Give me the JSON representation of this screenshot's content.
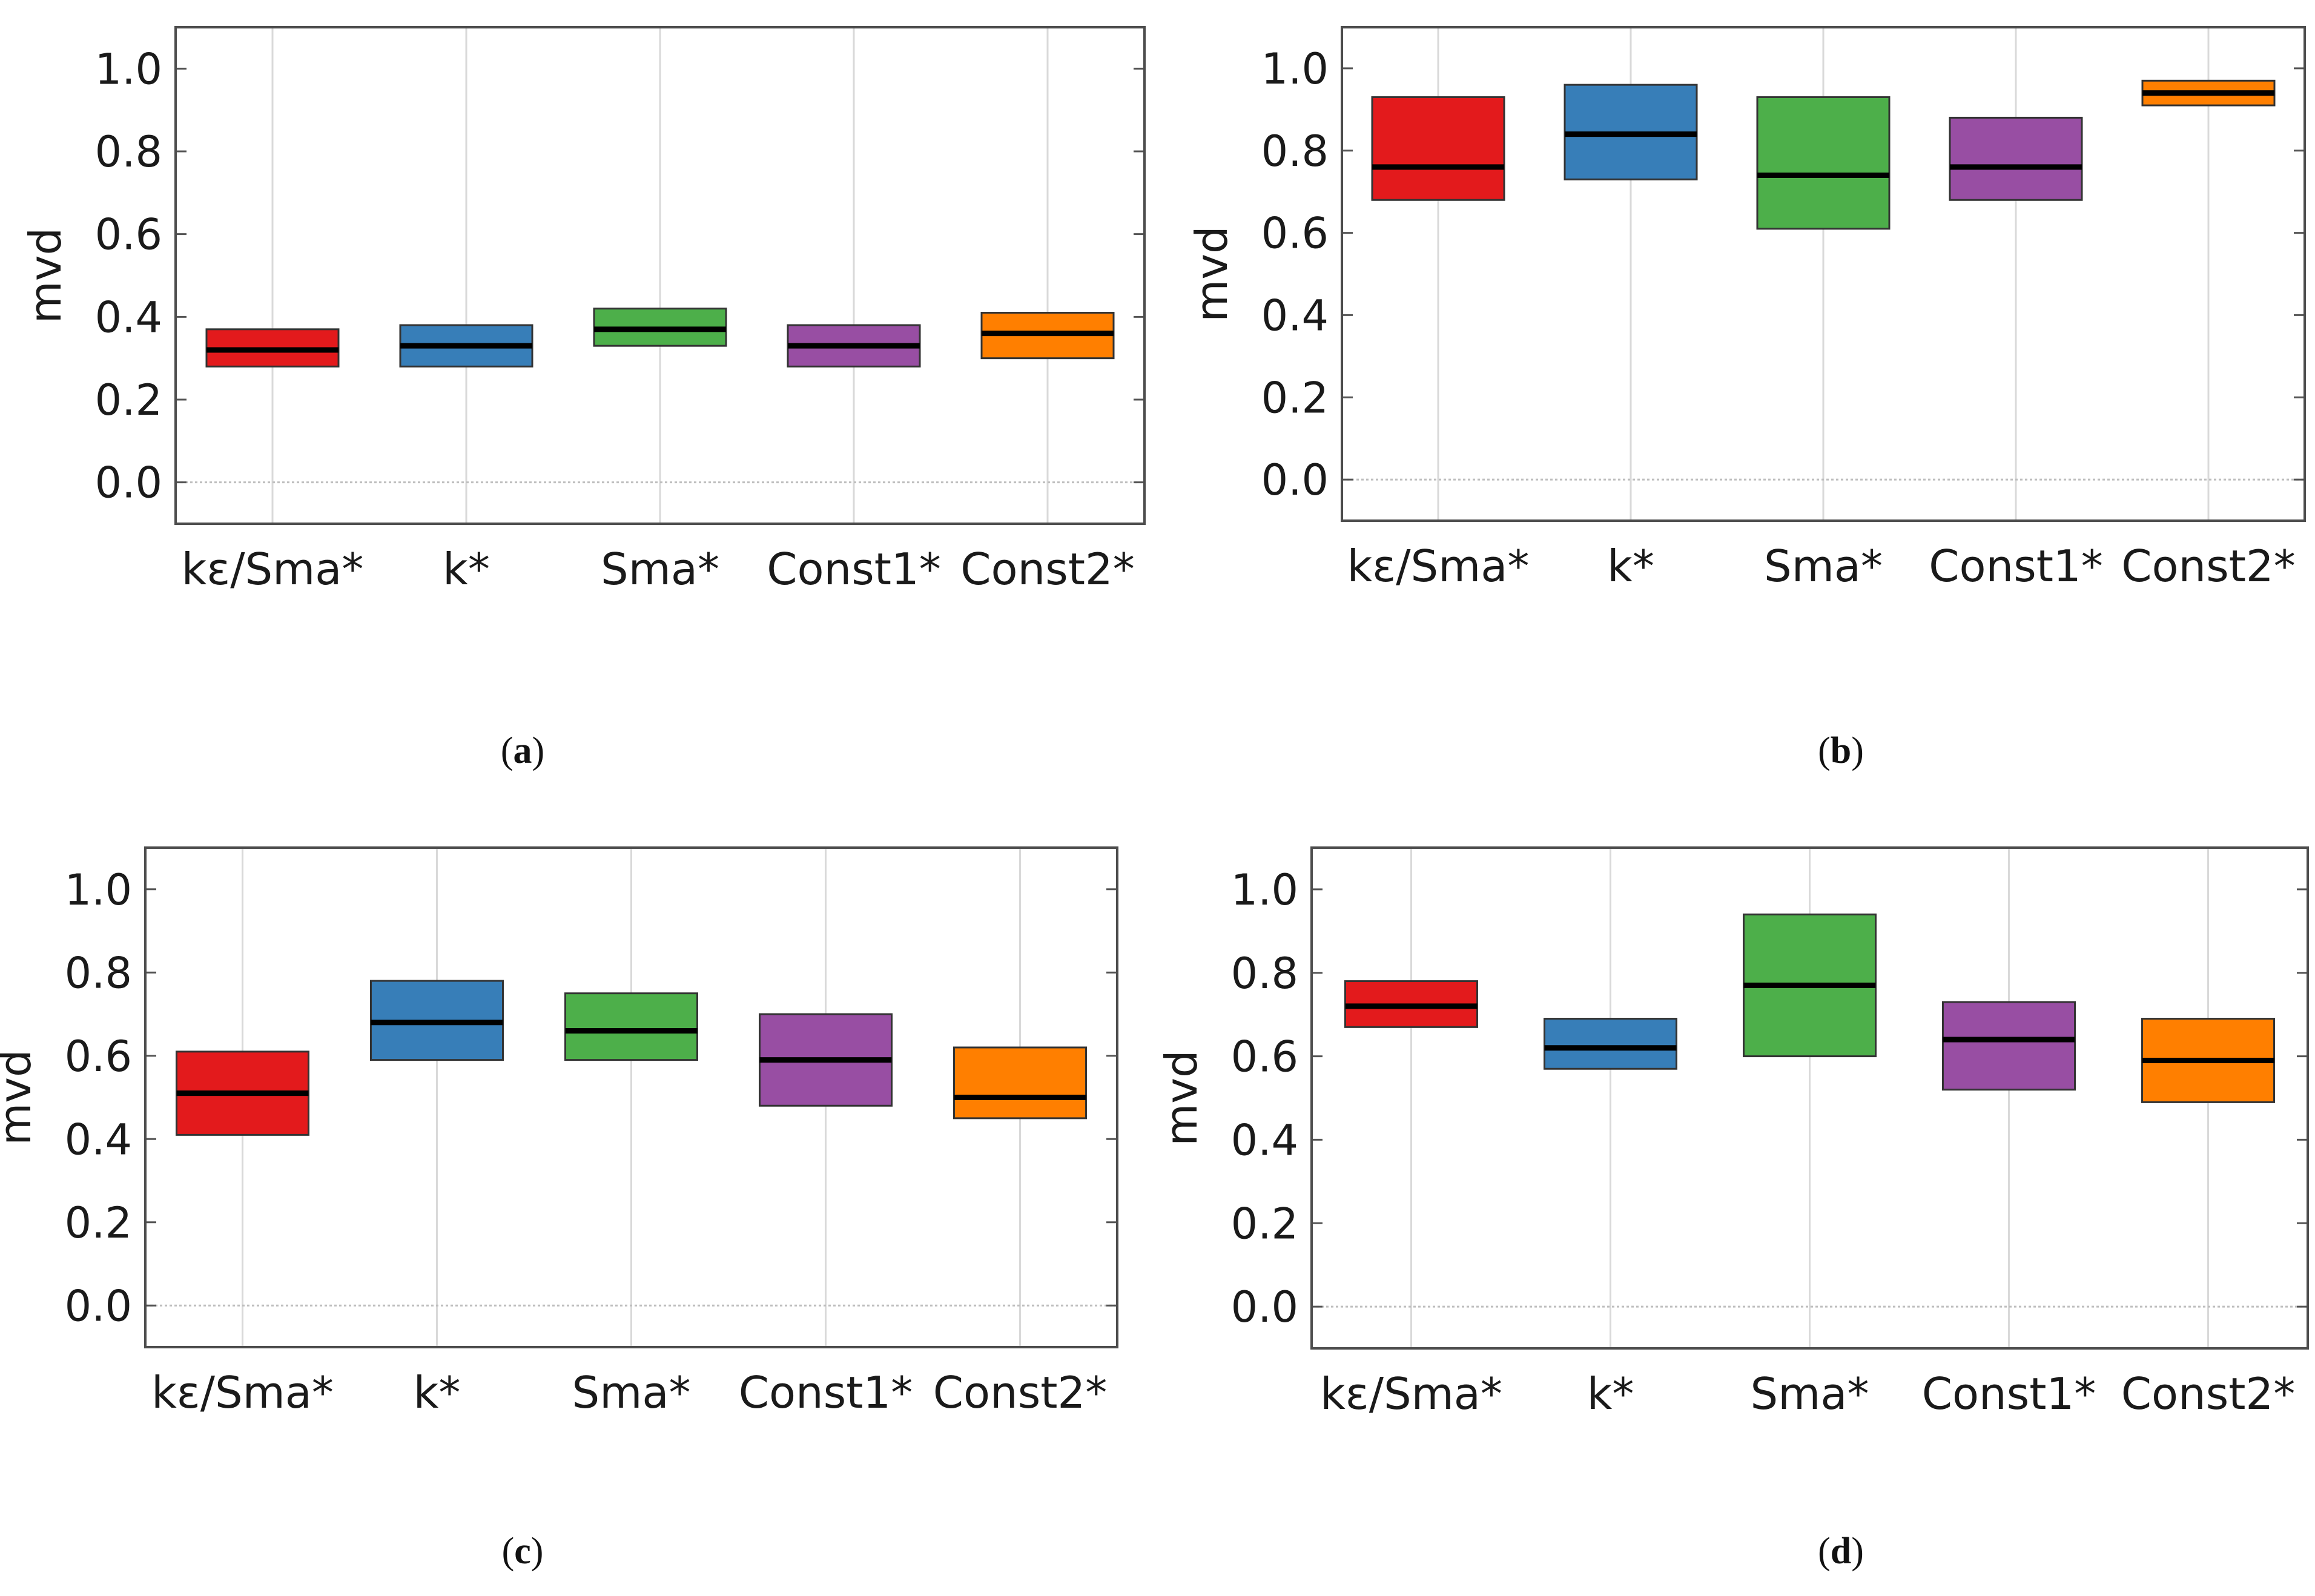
{
  "figure": {
    "caption_prefix": "(",
    "caption_suffix": ")"
  },
  "chart_data": [
    {
      "panel": "a",
      "type": "box",
      "ylabel": "mvd",
      "ylim": [
        -0.1,
        1.1
      ],
      "yticks": [
        0.0,
        0.2,
        0.4,
        0.6,
        0.8,
        1.0
      ],
      "ytick_labels": [
        "0.0",
        "0.2",
        "0.4",
        "0.6",
        "0.8",
        "1.0"
      ],
      "grid": true,
      "categories": [
        "kε/Sma*",
        "k*",
        "Sma*",
        "Const1*",
        "Const2*"
      ],
      "colors": [
        "#e31a1c",
        "#377eb8",
        "#4daf4a",
        "#984ea3",
        "#ff7f00"
      ],
      "boxes": [
        {
          "q1": 0.28,
          "median": 0.32,
          "q3": 0.37
        },
        {
          "q1": 0.28,
          "median": 0.33,
          "q3": 0.38
        },
        {
          "q1": 0.33,
          "median": 0.37,
          "q3": 0.42
        },
        {
          "q1": 0.28,
          "median": 0.33,
          "q3": 0.38
        },
        {
          "q1": 0.3,
          "median": 0.36,
          "q3": 0.41
        }
      ]
    },
    {
      "panel": "b",
      "type": "box",
      "ylabel": "mvd",
      "ylim": [
        -0.1,
        1.1
      ],
      "yticks": [
        0.0,
        0.2,
        0.4,
        0.6,
        0.8,
        1.0
      ],
      "ytick_labels": [
        "0.0",
        "0.2",
        "0.4",
        "0.6",
        "0.8",
        "1.0"
      ],
      "grid": true,
      "categories": [
        "kε/Sma*",
        "k*",
        "Sma*",
        "Const1*",
        "Const2*"
      ],
      "colors": [
        "#e31a1c",
        "#377eb8",
        "#4daf4a",
        "#984ea3",
        "#ff7f00"
      ],
      "boxes": [
        {
          "q1": 0.68,
          "median": 0.76,
          "q3": 0.93
        },
        {
          "q1": 0.73,
          "median": 0.84,
          "q3": 0.96
        },
        {
          "q1": 0.61,
          "median": 0.74,
          "q3": 0.93
        },
        {
          "q1": 0.68,
          "median": 0.76,
          "q3": 0.88
        },
        {
          "q1": 0.91,
          "median": 0.94,
          "q3": 0.97
        }
      ]
    },
    {
      "panel": "c",
      "type": "box",
      "ylabel": "mvd",
      "ylim": [
        -0.1,
        1.1
      ],
      "yticks": [
        0.0,
        0.2,
        0.4,
        0.6,
        0.8,
        1.0
      ],
      "ytick_labels": [
        "0.0",
        "0.2",
        "0.4",
        "0.6",
        "0.8",
        "1.0"
      ],
      "grid": true,
      "categories": [
        "kε/Sma*",
        "k*",
        "Sma*",
        "Const1*",
        "Const2*"
      ],
      "colors": [
        "#e31a1c",
        "#377eb8",
        "#4daf4a",
        "#984ea3",
        "#ff7f00"
      ],
      "boxes": [
        {
          "q1": 0.41,
          "median": 0.51,
          "q3": 0.61
        },
        {
          "q1": 0.59,
          "median": 0.68,
          "q3": 0.78
        },
        {
          "q1": 0.59,
          "median": 0.66,
          "q3": 0.75
        },
        {
          "q1": 0.48,
          "median": 0.59,
          "q3": 0.7
        },
        {
          "q1": 0.45,
          "median": 0.5,
          "q3": 0.62
        }
      ]
    },
    {
      "panel": "d",
      "type": "box",
      "ylabel": "mvd",
      "ylim": [
        -0.1,
        1.1
      ],
      "yticks": [
        0.0,
        0.2,
        0.4,
        0.6,
        0.8,
        1.0
      ],
      "ytick_labels": [
        "0.0",
        "0.2",
        "0.4",
        "0.6",
        "0.8",
        "1.0"
      ],
      "grid": true,
      "categories": [
        "kε/Sma*",
        "k*",
        "Sma*",
        "Const1*",
        "Const2*"
      ],
      "colors": [
        "#e31a1c",
        "#377eb8",
        "#4daf4a",
        "#984ea3",
        "#ff7f00"
      ],
      "boxes": [
        {
          "q1": 0.67,
          "median": 0.72,
          "q3": 0.78
        },
        {
          "q1": 0.57,
          "median": 0.62,
          "q3": 0.69
        },
        {
          "q1": 0.6,
          "median": 0.77,
          "q3": 0.94
        },
        {
          "q1": 0.52,
          "median": 0.64,
          "q3": 0.73
        },
        {
          "q1": 0.49,
          "median": 0.59,
          "q3": 0.69
        }
      ]
    }
  ]
}
